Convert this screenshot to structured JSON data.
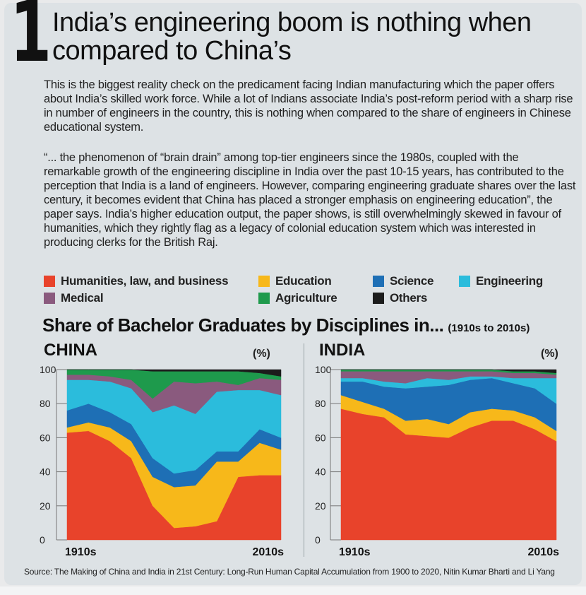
{
  "article": {
    "number": "1",
    "headline": "India’s engineering boom is nothing when compared to China’s",
    "paragraph1": "This is the biggest reality check on the predicament facing Indian manufacturing which the paper offers about India’s skilled work force. While a lot of Indians associate India’s post-reform period with a sharp rise in number of engineers in the country, this is nothing when compared to the share of engineers in Chinese educational system.",
    "paragraph2": "“... the phenomenon of “brain drain” among top-tier engineers since the 1980s, coupled with the remarkable growth of the engineering discipline in India over the past 10-15 years, has contributed to the perception that India is a land of engineers. However, comparing engineering graduate shares over the last century, it becomes evident that China has placed a stronger emphasis on engineering education”, the paper says. India’s higher education output, the paper shows, is still overwhelmingly skewed in favour of humanities, which they rightly flag as a legacy of colonial education system which was interested in producing clerks for the British Raj.",
    "source": "Source: The Making of China and India in 21st Century: Long-Run Human Capital Accumulation from 1900 to 2020,  Nitin Kumar Bharti and Li Yang"
  },
  "legend": [
    {
      "label": "Humanities, law, and business",
      "color": "#e8432b"
    },
    {
      "label": "Education",
      "color": "#f7b81a"
    },
    {
      "label": "Science",
      "color": "#1e6fb5"
    },
    {
      "label": "Engineering",
      "color": "#2bbcdc"
    },
    {
      "label": "Medical",
      "color": "#8a5a7e"
    },
    {
      "label": "Agriculture",
      "color": "#1e9a4c"
    },
    {
      "label": "Others",
      "color": "#1c1c1c"
    }
  ],
  "chart_title": "Share of Bachelor Graduates by Disciplines in...",
  "chart_subtitle": "(1910s to 2010s)",
  "chart_data": [
    {
      "type": "area",
      "stacked": true,
      "title": "CHINA",
      "unit_label": "(%)",
      "x": [
        1910,
        1920,
        1930,
        1940,
        1950,
        1960,
        1970,
        1980,
        1990,
        2000,
        2010
      ],
      "x_tick_labels": [
        "1910s",
        "2010s"
      ],
      "ylim": [
        0,
        100
      ],
      "y_ticks": [
        0,
        20,
        40,
        60,
        80,
        100
      ],
      "series": [
        {
          "name": "Humanities, law, and business",
          "values": [
            63,
            64,
            58,
            48,
            20,
            7,
            8,
            11,
            37,
            38,
            38
          ]
        },
        {
          "name": "Education",
          "values": [
            3,
            5,
            8,
            10,
            17,
            24,
            24,
            35,
            9,
            19,
            15
          ]
        },
        {
          "name": "Science",
          "values": [
            10,
            11,
            9,
            10,
            11,
            8,
            9,
            6,
            6,
            8,
            7
          ]
        },
        {
          "name": "Engineering",
          "values": [
            18,
            14,
            18,
            21,
            27,
            40,
            33,
            35,
            36,
            23,
            25
          ]
        },
        {
          "name": "Medical",
          "values": [
            3,
            3,
            3,
            5,
            8,
            14,
            18,
            6,
            3,
            7,
            9
          ]
        },
        {
          "name": "Agriculture",
          "values": [
            3,
            3,
            4,
            6,
            16,
            6,
            7,
            6,
            8,
            3,
            2
          ]
        },
        {
          "name": "Others",
          "values": [
            0,
            0,
            0,
            0,
            1,
            1,
            1,
            1,
            1,
            2,
            4
          ]
        }
      ]
    },
    {
      "type": "area",
      "stacked": true,
      "title": "INDIA",
      "unit_label": "(%)",
      "x": [
        1910,
        1920,
        1930,
        1940,
        1950,
        1960,
        1970,
        1980,
        1990,
        2000,
        2010
      ],
      "x_tick_labels": [
        "1910s",
        "2010s"
      ],
      "ylim": [
        0,
        100
      ],
      "y_ticks": [
        0,
        20,
        40,
        60,
        80,
        100
      ],
      "series": [
        {
          "name": "Humanities, law, and business",
          "values": [
            77,
            74,
            72,
            62,
            61,
            60,
            66,
            70,
            70,
            65,
            58
          ]
        },
        {
          "name": "Education",
          "values": [
            8,
            7,
            5,
            8,
            10,
            8,
            9,
            7,
            6,
            7,
            6
          ]
        },
        {
          "name": "Science",
          "values": [
            8,
            12,
            13,
            19,
            19,
            23,
            19,
            18,
            16,
            17,
            16
          ]
        },
        {
          "name": "Engineering",
          "values": [
            2,
            2,
            3,
            3,
            5,
            3,
            2,
            1,
            3,
            6,
            15
          ]
        },
        {
          "name": "Medical",
          "values": [
            4,
            4,
            6,
            7,
            4,
            5,
            3,
            3,
            3,
            3,
            2
          ]
        },
        {
          "name": "Agriculture",
          "values": [
            1,
            1,
            1,
            1,
            1,
            1,
            1,
            1,
            1,
            1,
            1
          ]
        },
        {
          "name": "Others",
          "values": [
            0,
            0,
            0,
            0,
            0,
            0,
            0,
            0,
            1,
            1,
            2
          ]
        }
      ]
    }
  ]
}
